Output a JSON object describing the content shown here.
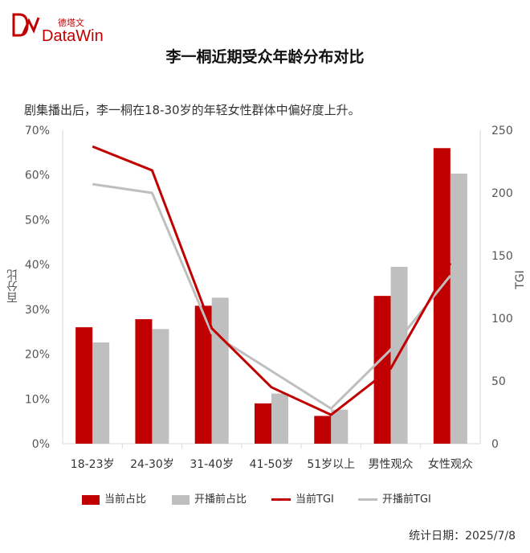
{
  "brand": {
    "cn": "德塔文",
    "en": "DataWin",
    "color": "#c00000"
  },
  "title": "李一桐近期受众年龄分布对比",
  "subtitle": "剧集播出后，李一桐在18-30岁的年轻女性群体中偏好度上升。",
  "footer": "统计日期：2025/7/8",
  "chart_data": {
    "type": "bar",
    "categories": [
      "18-23岁",
      "24-30岁",
      "31-40岁",
      "41-50岁",
      "51岁以上",
      "男性观众",
      "女性观众"
    ],
    "ylabel": "百分比",
    "y2label": "TGI",
    "ylim": [
      0,
      70
    ],
    "y2lim": [
      0,
      250
    ],
    "yticks": [
      "0%",
      "10%",
      "20%",
      "30%",
      "40%",
      "50%",
      "60%",
      "70%"
    ],
    "y2ticks": [
      "0",
      "50",
      "100",
      "150",
      "200",
      "250"
    ],
    "series": [
      {
        "name": "当前占比",
        "kind": "bar",
        "axis": "left",
        "color": "#c00000",
        "values": [
          26,
          27.8,
          30.8,
          9,
          6.2,
          33,
          66
        ]
      },
      {
        "name": "开播前占比",
        "kind": "bar",
        "axis": "left",
        "color": "#bfbfbf",
        "values": [
          22.6,
          25.6,
          32.6,
          11.2,
          7.6,
          39.5,
          60.3
        ]
      },
      {
        "name": "当前TGI",
        "kind": "line",
        "axis": "right",
        "color": "#c00000",
        "values": [
          237,
          218,
          92,
          45,
          23,
          60,
          144
        ]
      },
      {
        "name": "开播前TGI",
        "kind": "line",
        "axis": "right",
        "color": "#bfbfbf",
        "values": [
          207,
          200,
          88,
          58,
          28,
          75,
          134
        ]
      }
    ],
    "legend_position": "bottom",
    "grid": false
  }
}
